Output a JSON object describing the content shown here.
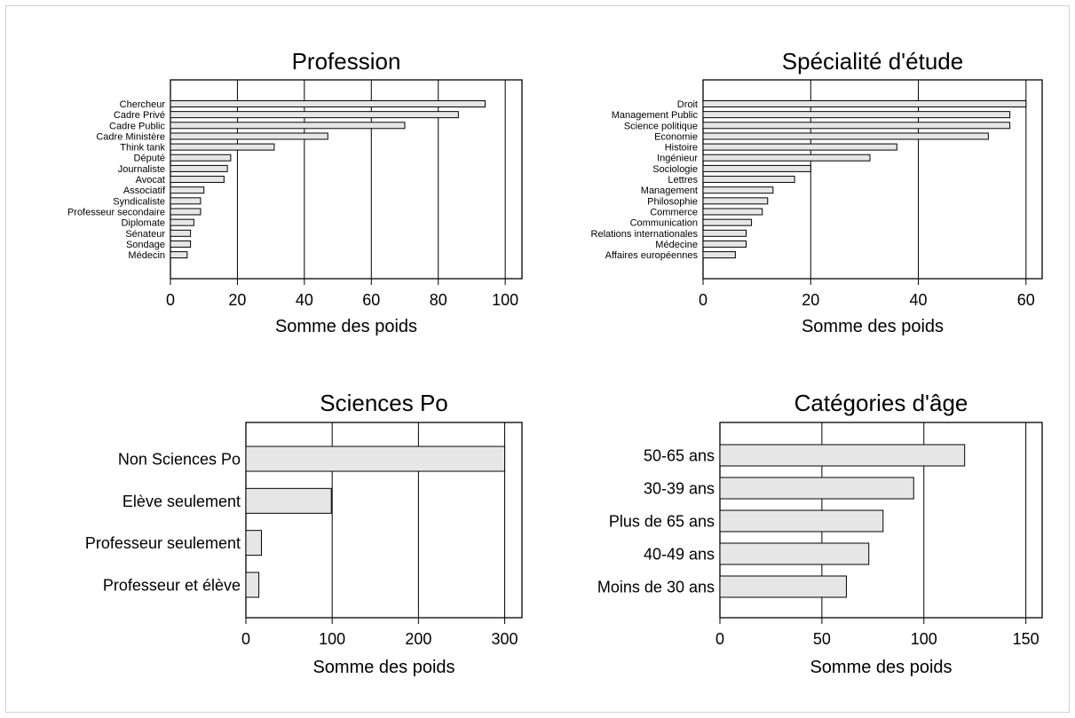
{
  "chart_data": [
    {
      "type": "bar",
      "orientation": "horizontal",
      "title": "Profession",
      "xlabel": "Somme des poids",
      "xlim": [
        0,
        105
      ],
      "xticks": [
        0,
        20,
        40,
        60,
        80,
        100
      ],
      "grid": "vertical",
      "categories": [
        "Chercheur",
        "Cadre Privé",
        "Cadre Public",
        "Cadre Ministère",
        "Think tank",
        "Député",
        "Journaliste",
        "Avocat",
        "Associatif",
        "Syndicaliste",
        "Professeur secondaire",
        "Diplomate",
        "Sénateur",
        "Sondage",
        "Médecin"
      ],
      "values": [
        94,
        86,
        70,
        47,
        31,
        18,
        17,
        16,
        10,
        9,
        9,
        7,
        6,
        6,
        5
      ]
    },
    {
      "type": "bar",
      "orientation": "horizontal",
      "title": "Spécialité d'étude",
      "xlabel": "Somme des poids",
      "xlim": [
        0,
        63
      ],
      "xticks": [
        0,
        20,
        40,
        60
      ],
      "grid": "vertical",
      "categories": [
        "Droit",
        "Management Public",
        "Science politique",
        "Economie",
        "Histoire",
        "Ingénieur",
        "Sociologie",
        "Lettres",
        "Management",
        "Philosophie",
        "Commerce",
        "Communication",
        "Relations internationales",
        "Médecine",
        "Affaires européennes"
      ],
      "values": [
        60,
        57,
        57,
        53,
        36,
        31,
        20,
        17,
        13,
        12,
        11,
        9,
        8,
        8,
        6
      ]
    },
    {
      "type": "bar",
      "orientation": "horizontal",
      "title": "Sciences Po",
      "xlabel": "Somme des poids",
      "xlim": [
        0,
        320
      ],
      "xticks": [
        0,
        100,
        200,
        300
      ],
      "grid": "vertical",
      "categories": [
        "Non Sciences Po",
        "Elève seulement",
        "Professeur seulement",
        "Professeur et élève"
      ],
      "values": [
        300,
        99,
        18,
        15
      ]
    },
    {
      "type": "bar",
      "orientation": "horizontal",
      "title": "Catégories d'âge",
      "xlabel": "Somme des poids",
      "xlim": [
        0,
        158
      ],
      "xticks": [
        0,
        50,
        100,
        150
      ],
      "grid": "vertical",
      "categories": [
        "50-65 ans",
        "30-39 ans",
        "Plus de 65 ans",
        "40-49 ans",
        "Moins de 30 ans"
      ],
      "values": [
        120,
        95,
        80,
        73,
        62
      ]
    }
  ]
}
